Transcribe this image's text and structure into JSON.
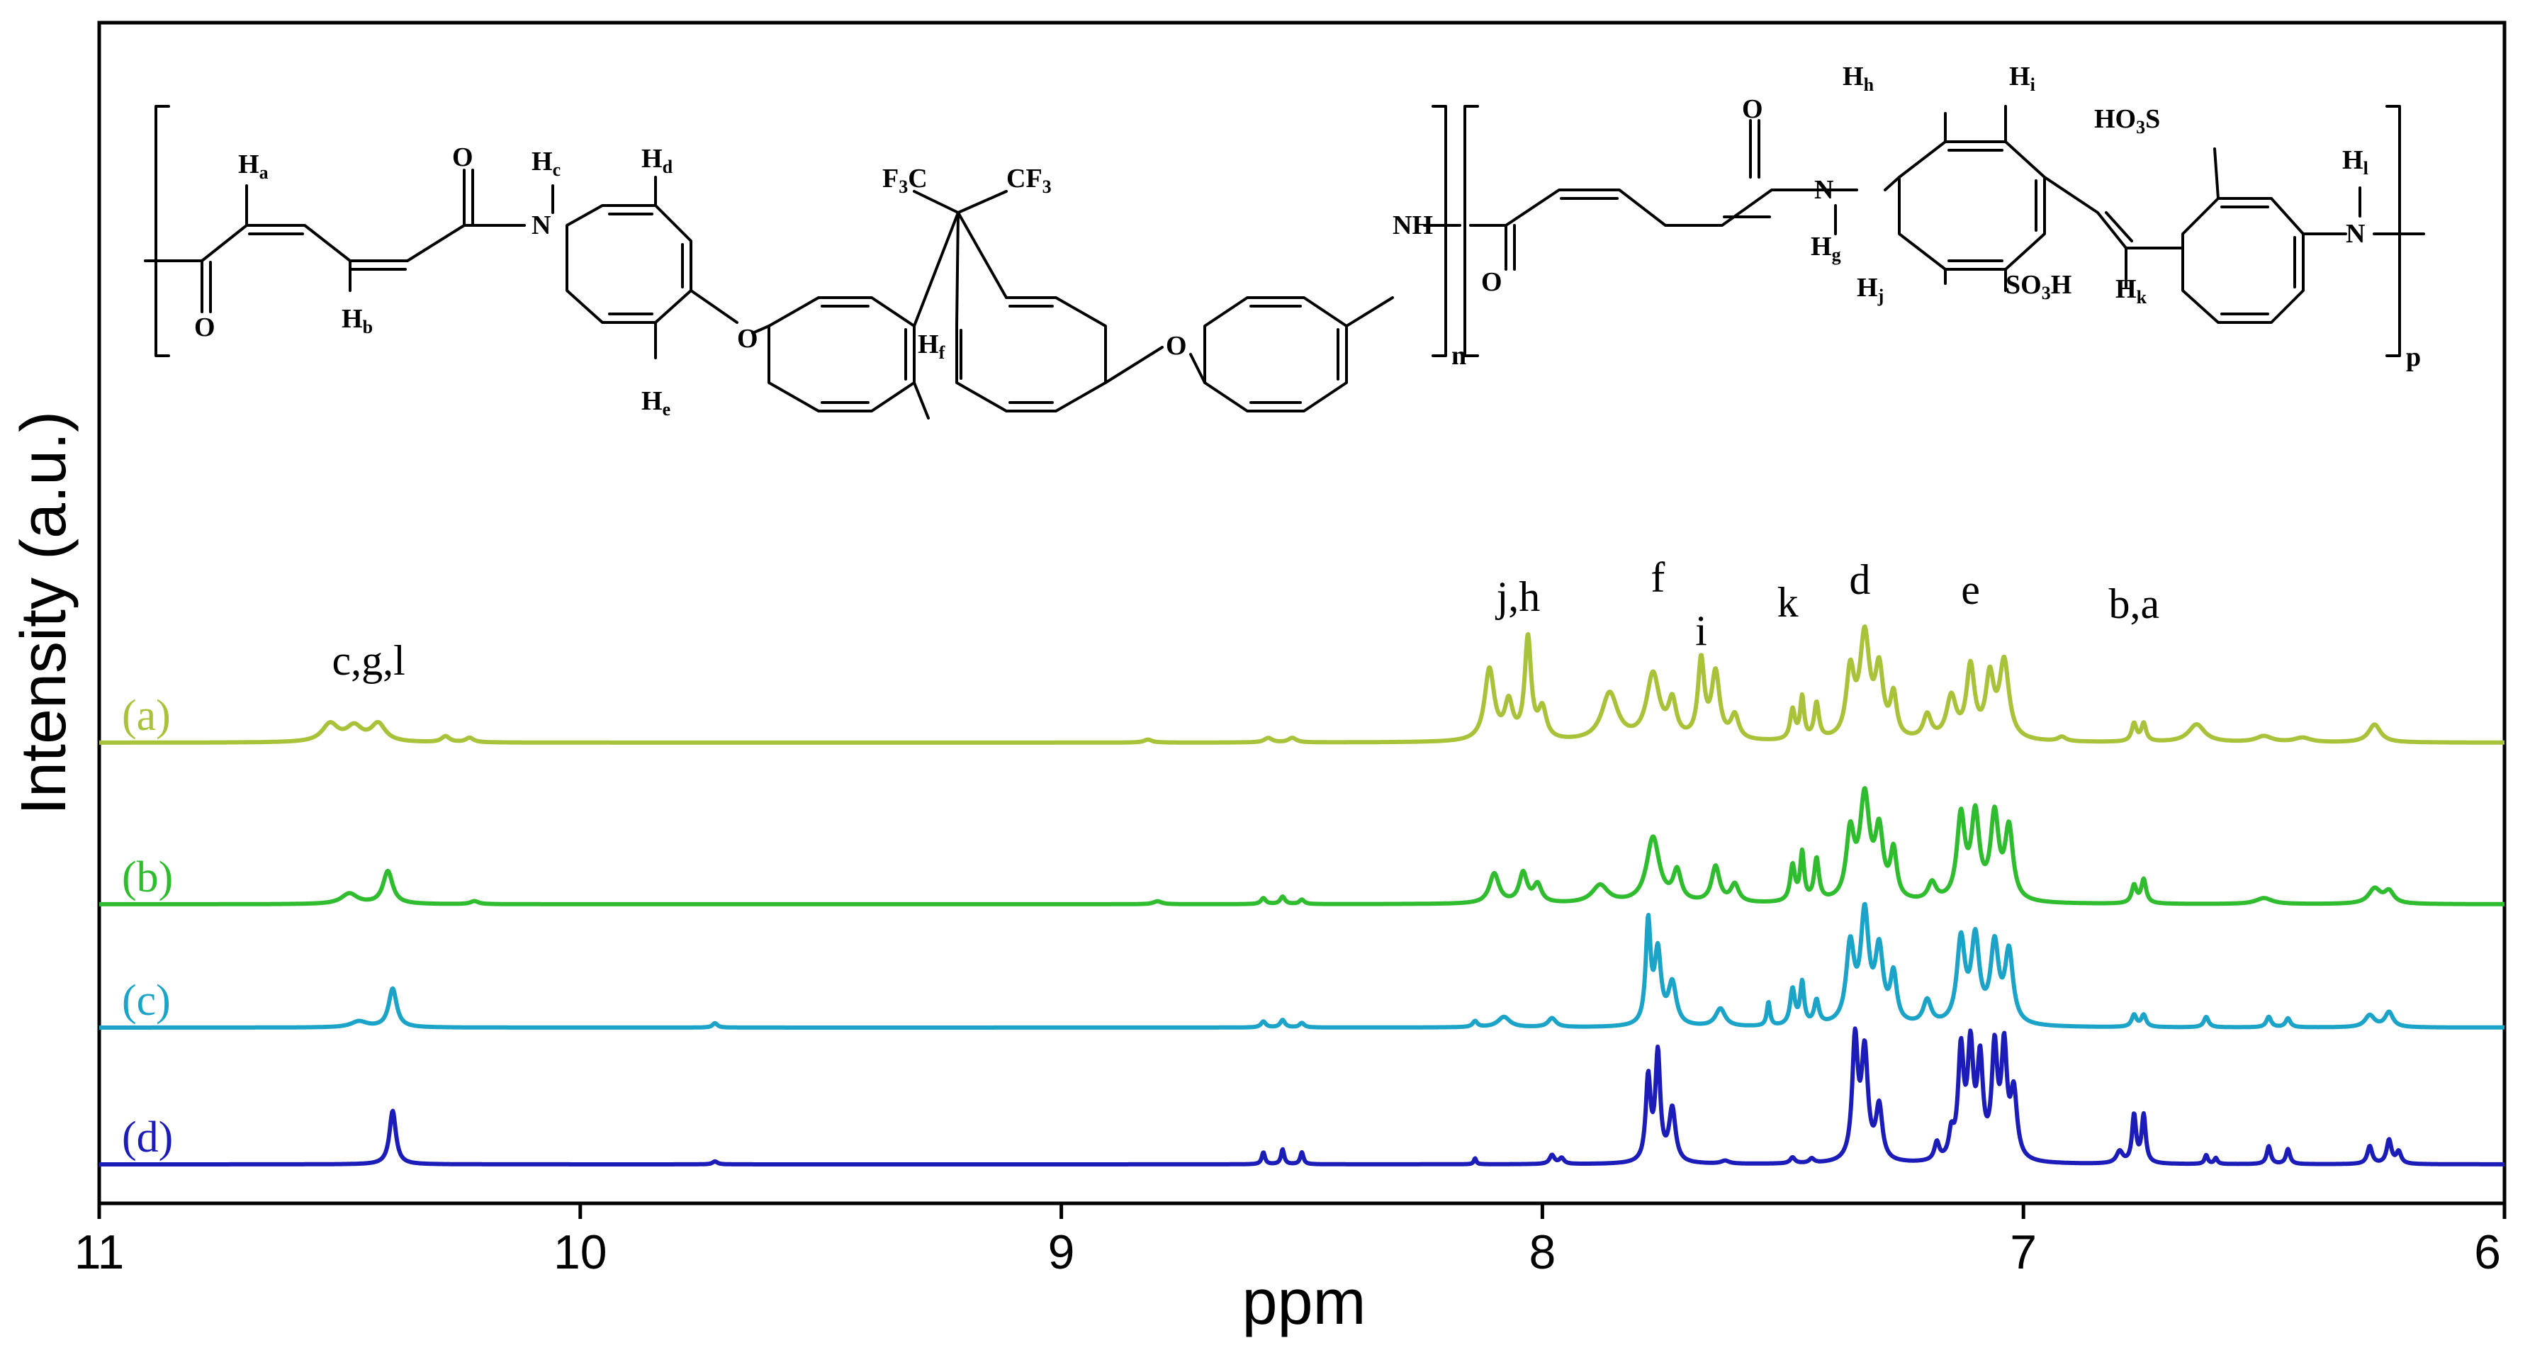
{
  "chart_data": {
    "type": "line",
    "xlabel": "ppm",
    "ylabel": "Intensity (a.u.)",
    "xlim": [
      11,
      6
    ],
    "x_reversed": true,
    "xticks": [
      11,
      10,
      9,
      8,
      7,
      6
    ],
    "grid": false,
    "peak_labels": [
      {
        "text": "c,g,l",
        "x": 10.44
      },
      {
        "text": "j,h",
        "x": 8.05
      },
      {
        "text": "f",
        "x": 7.76
      },
      {
        "text": "i",
        "x": 7.67
      },
      {
        "text": "k",
        "x": 7.49
      },
      {
        "text": "d",
        "x": 7.34
      },
      {
        "text": "e",
        "x": 7.11
      },
      {
        "text": "b,a",
        "x": 6.77
      }
    ],
    "series": [
      {
        "name": "(a)",
        "color": "#a8c23a",
        "peaks": [
          [
            10.52,
            0.06,
            0.02
          ],
          [
            10.47,
            0.05,
            0.02
          ],
          [
            10.42,
            0.06,
            0.018
          ],
          [
            10.28,
            0.02,
            0.01
          ],
          [
            10.23,
            0.015,
            0.01
          ],
          [
            8.82,
            0.01,
            0.01
          ],
          [
            8.57,
            0.015,
            0.01
          ],
          [
            8.52,
            0.015,
            0.01
          ],
          [
            8.11,
            0.24,
            0.012
          ],
          [
            8.07,
            0.12,
            0.01
          ],
          [
            8.03,
            0.34,
            0.008
          ],
          [
            8.0,
            0.1,
            0.01
          ],
          [
            7.86,
            0.16,
            0.02
          ],
          [
            7.77,
            0.22,
            0.016
          ],
          [
            7.73,
            0.12,
            0.01
          ],
          [
            7.67,
            0.26,
            0.008
          ],
          [
            7.64,
            0.22,
            0.01
          ],
          [
            7.6,
            0.08,
            0.01
          ],
          [
            7.48,
            0.1,
            0.006
          ],
          [
            7.46,
            0.14,
            0.005
          ],
          [
            7.43,
            0.12,
            0.006
          ],
          [
            7.36,
            0.22,
            0.01
          ],
          [
            7.33,
            0.34,
            0.012
          ],
          [
            7.3,
            0.22,
            0.01
          ],
          [
            7.27,
            0.14,
            0.008
          ],
          [
            7.2,
            0.08,
            0.01
          ],
          [
            7.15,
            0.14,
            0.012
          ],
          [
            7.11,
            0.24,
            0.01
          ],
          [
            7.07,
            0.2,
            0.01
          ],
          [
            7.04,
            0.26,
            0.012
          ],
          [
            6.92,
            0.015,
            0.01
          ],
          [
            6.77,
            0.06,
            0.006
          ],
          [
            6.75,
            0.06,
            0.006
          ],
          [
            6.64,
            0.06,
            0.02
          ],
          [
            6.5,
            0.02,
            0.02
          ],
          [
            6.42,
            0.015,
            0.02
          ],
          [
            6.27,
            0.06,
            0.015
          ]
        ]
      },
      {
        "name": "(b)",
        "color": "#2fbd2f",
        "peaks": [
          [
            10.48,
            0.035,
            0.02
          ],
          [
            10.4,
            0.11,
            0.012
          ],
          [
            10.22,
            0.01,
            0.01
          ],
          [
            8.58,
            0.02,
            0.006
          ],
          [
            8.54,
            0.025,
            0.006
          ],
          [
            8.5,
            0.015,
            0.006
          ],
          [
            8.8,
            0.01,
            0.01
          ],
          [
            8.1,
            0.1,
            0.012
          ],
          [
            8.04,
            0.1,
            0.01
          ],
          [
            8.01,
            0.06,
            0.01
          ],
          [
            7.88,
            0.06,
            0.02
          ],
          [
            7.77,
            0.22,
            0.016
          ],
          [
            7.72,
            0.1,
            0.01
          ],
          [
            7.64,
            0.12,
            0.01
          ],
          [
            7.6,
            0.06,
            0.01
          ],
          [
            7.48,
            0.12,
            0.006
          ],
          [
            7.46,
            0.16,
            0.005
          ],
          [
            7.43,
            0.14,
            0.006
          ],
          [
            7.36,
            0.22,
            0.01
          ],
          [
            7.33,
            0.34,
            0.012
          ],
          [
            7.3,
            0.22,
            0.01
          ],
          [
            7.27,
            0.16,
            0.008
          ],
          [
            7.19,
            0.06,
            0.01
          ],
          [
            7.13,
            0.28,
            0.01
          ],
          [
            7.1,
            0.28,
            0.01
          ],
          [
            7.06,
            0.28,
            0.01
          ],
          [
            7.03,
            0.24,
            0.01
          ],
          [
            6.77,
            0.06,
            0.006
          ],
          [
            6.75,
            0.08,
            0.006
          ],
          [
            6.5,
            0.02,
            0.02
          ],
          [
            6.27,
            0.05,
            0.015
          ],
          [
            6.24,
            0.04,
            0.012
          ]
        ]
      },
      {
        "name": "(c)",
        "color": "#1ba3c8",
        "peaks": [
          [
            10.46,
            0.02,
            0.02
          ],
          [
            10.39,
            0.13,
            0.01
          ],
          [
            9.72,
            0.015,
            0.006
          ],
          [
            8.58,
            0.02,
            0.006
          ],
          [
            8.54,
            0.025,
            0.006
          ],
          [
            8.5,
            0.015,
            0.006
          ],
          [
            8.14,
            0.02,
            0.006
          ],
          [
            8.08,
            0.035,
            0.015
          ],
          [
            7.98,
            0.03,
            0.01
          ],
          [
            7.78,
            0.34,
            0.006
          ],
          [
            7.76,
            0.24,
            0.008
          ],
          [
            7.73,
            0.14,
            0.01
          ],
          [
            7.63,
            0.06,
            0.012
          ],
          [
            7.53,
            0.08,
            0.004
          ],
          [
            7.48,
            0.12,
            0.006
          ],
          [
            7.46,
            0.14,
            0.005
          ],
          [
            7.43,
            0.08,
            0.006
          ],
          [
            7.36,
            0.26,
            0.01
          ],
          [
            7.33,
            0.36,
            0.01
          ],
          [
            7.3,
            0.24,
            0.01
          ],
          [
            7.27,
            0.16,
            0.008
          ],
          [
            7.2,
            0.08,
            0.01
          ],
          [
            7.13,
            0.28,
            0.01
          ],
          [
            7.1,
            0.28,
            0.01
          ],
          [
            7.06,
            0.26,
            0.01
          ],
          [
            7.03,
            0.24,
            0.01
          ],
          [
            6.77,
            0.04,
            0.006
          ],
          [
            6.75,
            0.04,
            0.006
          ],
          [
            6.62,
            0.035,
            0.006
          ],
          [
            6.49,
            0.035,
            0.006
          ],
          [
            6.45,
            0.03,
            0.006
          ],
          [
            6.28,
            0.04,
            0.012
          ],
          [
            6.24,
            0.05,
            0.01
          ]
        ]
      },
      {
        "name": "(d)",
        "color": "#1c1cb8",
        "peaks": [
          [
            10.39,
            0.18,
            0.008
          ],
          [
            9.72,
            0.01,
            0.006
          ],
          [
            8.58,
            0.04,
            0.004
          ],
          [
            8.54,
            0.05,
            0.004
          ],
          [
            8.5,
            0.04,
            0.004
          ],
          [
            8.14,
            0.02,
            0.003
          ],
          [
            7.98,
            0.03,
            0.006
          ],
          [
            7.96,
            0.02,
            0.006
          ],
          [
            7.78,
            0.28,
            0.006
          ],
          [
            7.76,
            0.36,
            0.006
          ],
          [
            7.73,
            0.18,
            0.008
          ],
          [
            7.62,
            0.01,
            0.01
          ],
          [
            7.48,
            0.02,
            0.006
          ],
          [
            7.44,
            0.015,
            0.006
          ],
          [
            7.35,
            0.4,
            0.007
          ],
          [
            7.33,
            0.36,
            0.008
          ],
          [
            7.3,
            0.18,
            0.008
          ],
          [
            7.18,
            0.06,
            0.006
          ],
          [
            7.15,
            0.08,
            0.006
          ],
          [
            7.13,
            0.36,
            0.007
          ],
          [
            7.11,
            0.36,
            0.007
          ],
          [
            7.09,
            0.32,
            0.007
          ],
          [
            7.06,
            0.36,
            0.007
          ],
          [
            7.04,
            0.36,
            0.007
          ],
          [
            7.02,
            0.22,
            0.008
          ],
          [
            6.8,
            0.04,
            0.008
          ],
          [
            6.77,
            0.16,
            0.005
          ],
          [
            6.75,
            0.16,
            0.005
          ],
          [
            6.62,
            0.03,
            0.004
          ],
          [
            6.6,
            0.02,
            0.004
          ],
          [
            6.49,
            0.06,
            0.005
          ],
          [
            6.45,
            0.05,
            0.005
          ],
          [
            6.28,
            0.06,
            0.006
          ],
          [
            6.24,
            0.08,
            0.006
          ],
          [
            6.22,
            0.04,
            0.006
          ]
        ]
      }
    ]
  },
  "structure_labels": {
    "ha": "H",
    "ha_sub": "a",
    "hb": "H",
    "hb_sub": "b",
    "hc": "H",
    "hc_sub": "c",
    "hd": "H",
    "hd_sub": "d",
    "he": "H",
    "he_sub": "e",
    "hf": "H",
    "hf_sub": "f",
    "hg": "H",
    "hg_sub": "g",
    "hh": "H",
    "hh_sub": "h",
    "hi": "H",
    "hi_sub": "i",
    "hj": "H",
    "hj_sub": "j",
    "hk": "H",
    "hk_sub": "k",
    "hl": "H",
    "hl_sub": "l",
    "n1": "N",
    "n2": "N",
    "n3": "N",
    "nh": "NH",
    "o1": "O",
    "o2": "O",
    "o3": "O",
    "o4": "O",
    "o5": "O",
    "o6": "O",
    "f3c": "F",
    "f3c_sub": "3",
    "f3c_tail": "C",
    "cf3": "CF",
    "cf3_sub": "3",
    "so3h_a": "SO",
    "so3h_a_sub": "3",
    "so3h_a_tail": "H",
    "ho3s": "HO",
    "ho3s_sub": "3",
    "ho3s_tail": "S",
    "sub_n": "n",
    "sub_p": "p"
  }
}
